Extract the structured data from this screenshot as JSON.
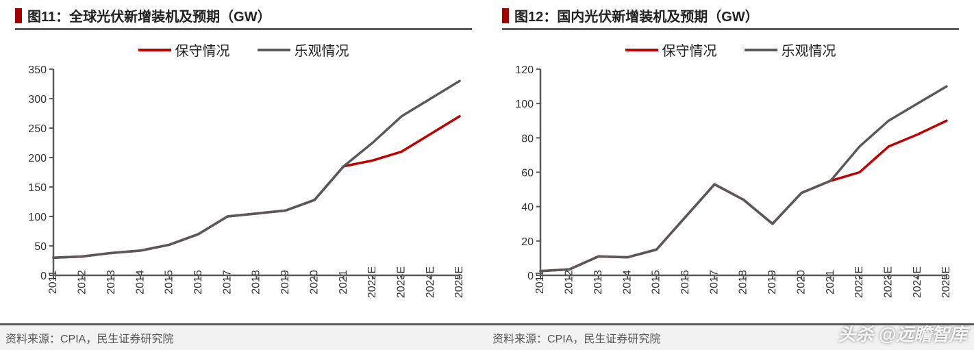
{
  "panels": [
    {
      "title": "图11：全球光伏新增装机及预期（GW）",
      "source": "资料来源：CPIA，民生证券研究院",
      "chart": {
        "type": "line",
        "categories": [
          "2011",
          "2012",
          "2013",
          "2014",
          "2015",
          "2016",
          "2017",
          "2018",
          "2019",
          "2020",
          "2021",
          "2022E",
          "2023E",
          "2024E",
          "2025E"
        ],
        "ylim": [
          0,
          350
        ],
        "ytick_step": 50,
        "yticks": [
          0,
          50,
          100,
          150,
          200,
          250,
          300,
          350
        ],
        "line_width": 3.5,
        "axis_color": "#595959",
        "axis_width": 2.5,
        "tick_len": 6,
        "background_color": "#ffffff",
        "label_fontsize": 16,
        "xlabel_rotation": -90,
        "series": [
          {
            "name": "保守情况",
            "color": "#c00000",
            "values": [
              30,
              32,
              38,
              42,
              52,
              70,
              100,
              105,
              110,
              128,
              185,
              195,
              210,
              240,
              270
            ]
          },
          {
            "name": "乐观情况",
            "color": "#595959",
            "values": [
              30,
              32,
              38,
              42,
              52,
              70,
              100,
              105,
              110,
              128,
              185,
              225,
              270,
              300,
              330
            ]
          }
        ]
      }
    },
    {
      "title": "图12：国内光伏新增装机及预期（GW）",
      "source": "资料来源：CPIA，民生证券研究院",
      "chart": {
        "type": "line",
        "categories": [
          "2011",
          "2012",
          "2013",
          "2014",
          "2015",
          "2016",
          "2017",
          "2018",
          "2019",
          "2020",
          "2021",
          "2022E",
          "2023E",
          "2024E",
          "2025E"
        ],
        "ylim": [
          0,
          120
        ],
        "ytick_step": 20,
        "yticks": [
          0,
          20,
          40,
          60,
          80,
          100,
          120
        ],
        "line_width": 3.5,
        "axis_color": "#595959",
        "axis_width": 2.5,
        "tick_len": 6,
        "background_color": "#ffffff",
        "label_fontsize": 16,
        "xlabel_rotation": -90,
        "series": [
          {
            "name": "保守情况",
            "color": "#c00000",
            "values": [
              2.5,
              3.5,
              11,
              10.5,
              15,
              34,
              53,
              44,
              30,
              48,
              55,
              60,
              75,
              82,
              90
            ]
          },
          {
            "name": "乐观情况",
            "color": "#595959",
            "values": [
              2.5,
              3.5,
              11,
              10.5,
              15,
              34,
              53,
              44,
              30,
              48,
              55,
              75,
              90,
              100,
              110
            ]
          }
        ]
      }
    }
  ],
  "watermark": "头杀 @远瞻智库"
}
